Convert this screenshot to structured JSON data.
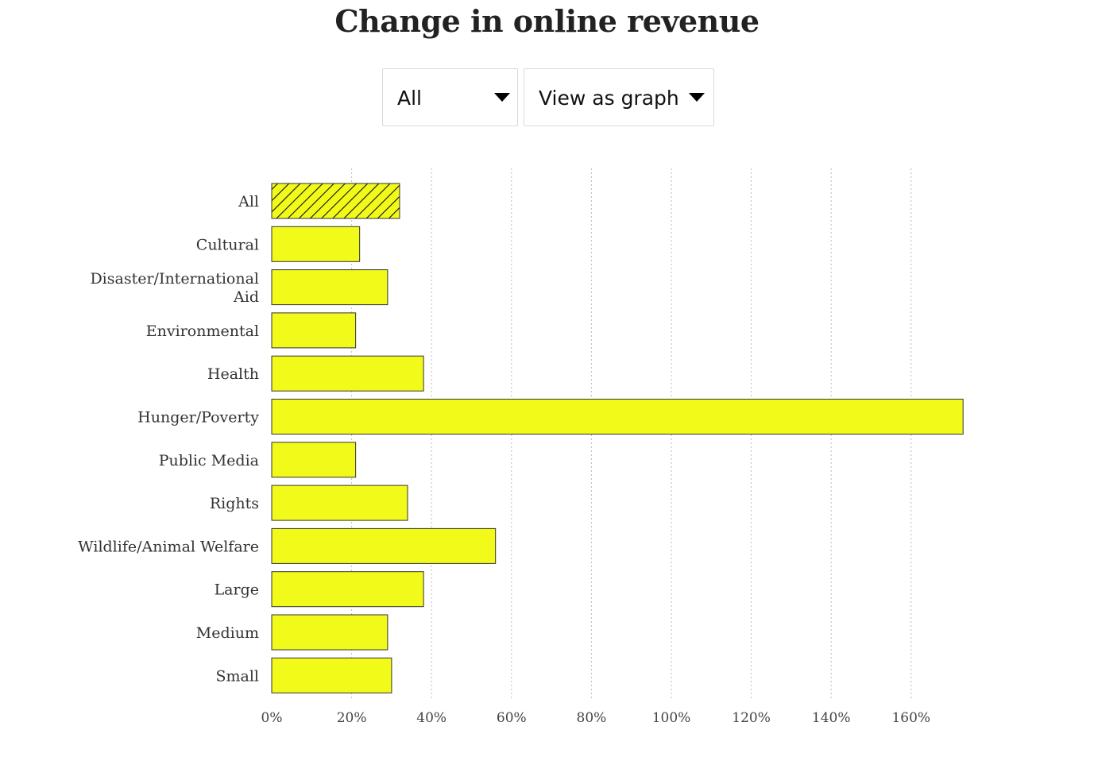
{
  "title": "Change in online revenue",
  "controls": {
    "filter_value": "All",
    "view_value": "View as graph"
  },
  "colors": {
    "bar_fill": "#f2fa1a",
    "bar_stroke": "#333333",
    "hatch": "#111111",
    "grid": "#bbbbbb"
  },
  "chart_data": {
    "type": "bar",
    "orientation": "horizontal",
    "title": "Change in online revenue",
    "categories": [
      [
        "All"
      ],
      [
        "Cultural"
      ],
      [
        "Disaster/International",
        "Aid"
      ],
      [
        "Environmental"
      ],
      [
        "Health"
      ],
      [
        "Hunger/Poverty"
      ],
      [
        "Public Media"
      ],
      [
        "Rights"
      ],
      [
        "Wildlife/Animal Welfare"
      ],
      [
        "Large"
      ],
      [
        "Medium"
      ],
      [
        "Small"
      ]
    ],
    "values": [
      32,
      22,
      29,
      21,
      38,
      173,
      21,
      34,
      56,
      38,
      29,
      30
    ],
    "highlight": [
      "All"
    ],
    "xlim": [
      0,
      170
    ],
    "xticks": [
      0,
      20,
      40,
      60,
      80,
      100,
      120,
      140,
      160
    ],
    "xtick_labels": [
      "0%",
      "20%",
      "40%",
      "60%",
      "80%",
      "100%",
      "120%",
      "140%",
      "160%"
    ],
    "xlabel": "",
    "ylabel": "",
    "grid": "vertical dotted"
  }
}
